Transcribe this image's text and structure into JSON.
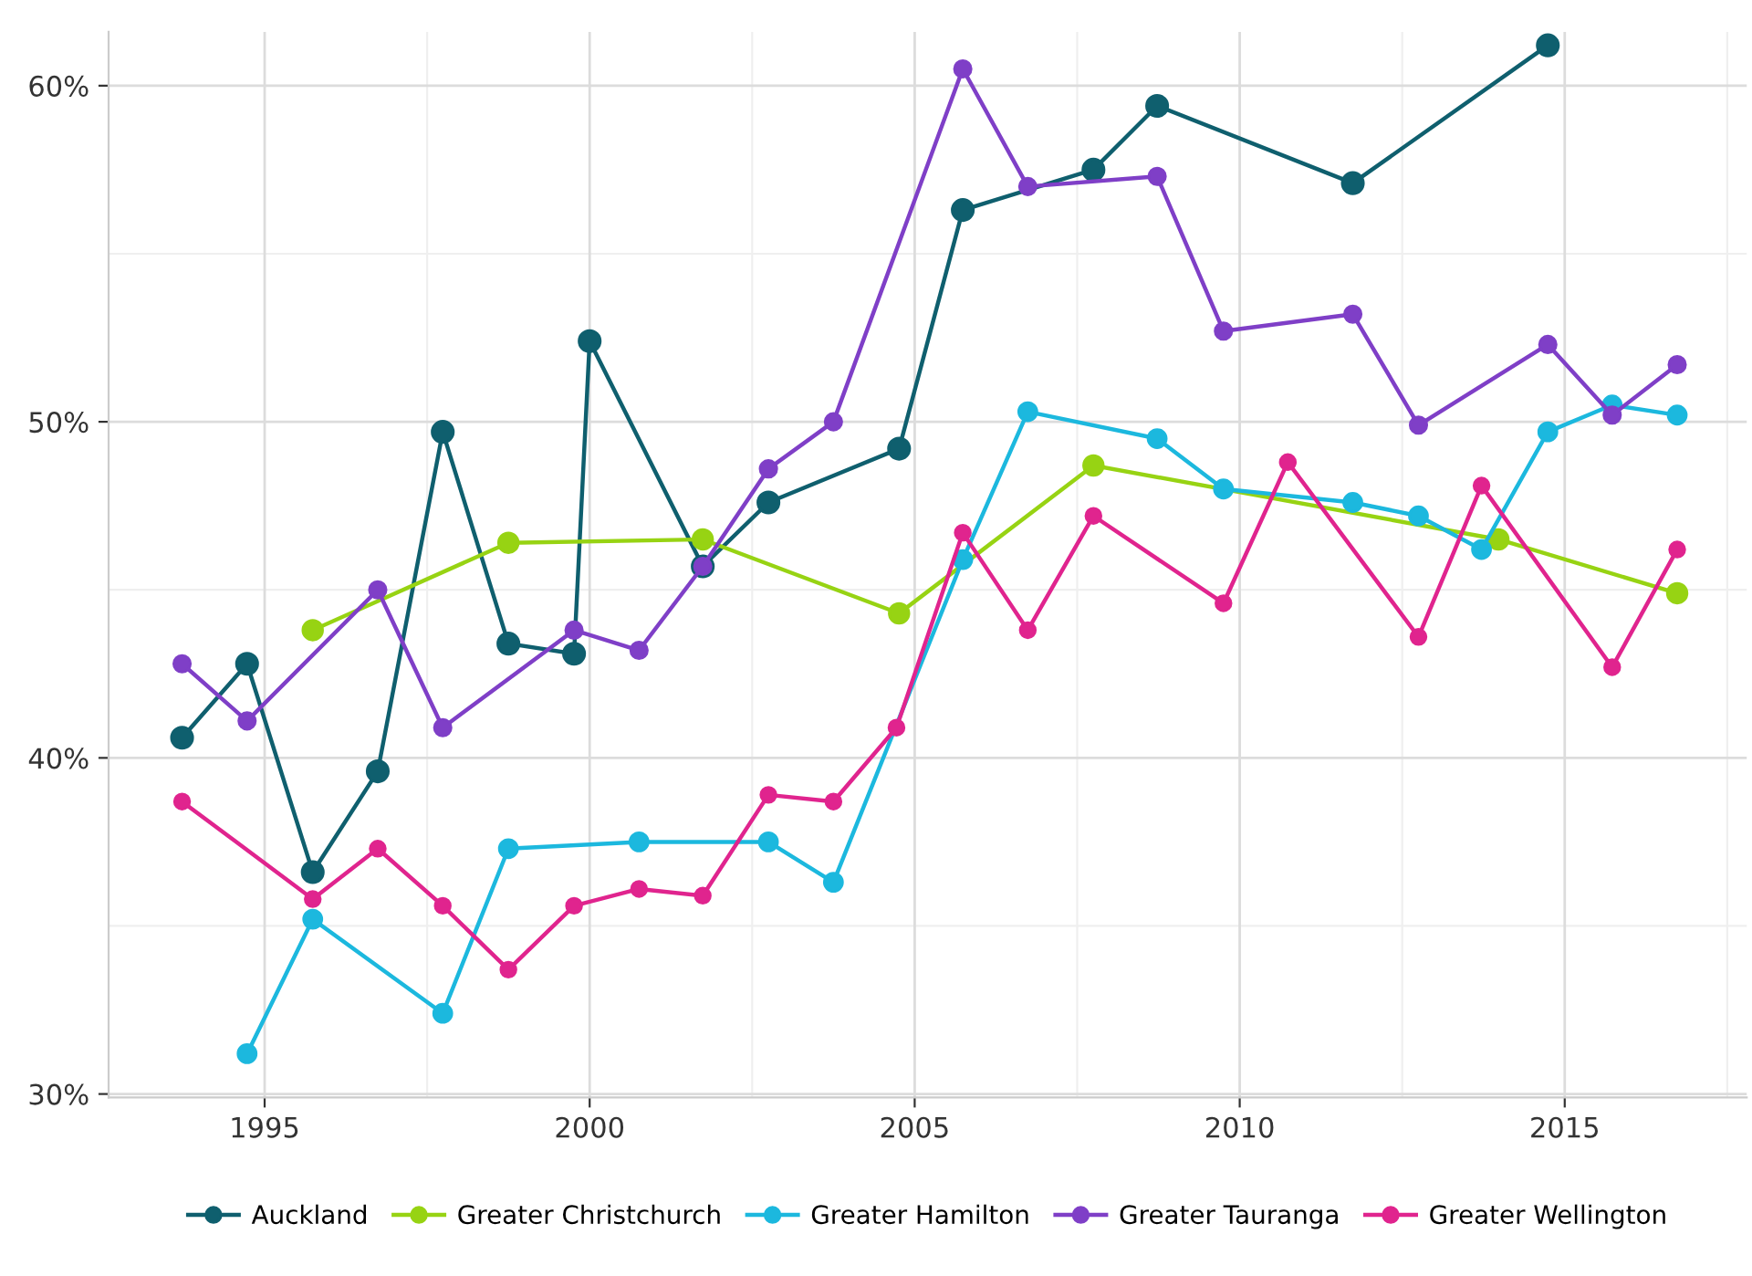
{
  "chart_data": {
    "type": "line",
    "marker": "circle",
    "grid": true,
    "legend": "bottom",
    "xlim": [
      1992.6,
      2017.8
    ],
    "ylim": [
      29.9,
      61.6
    ],
    "xticks": [
      1995,
      2000,
      2005,
      2010,
      2015
    ],
    "yticks": [
      {
        "value": 30,
        "label": "30%"
      },
      {
        "value": 40,
        "label": "40%"
      },
      {
        "value": 50,
        "label": "50%"
      },
      {
        "value": 60,
        "label": "60%"
      }
    ],
    "series": [
      {
        "name": "Auckland",
        "color": "#0f5f6e",
        "x": [
          1993.73,
          1994.73,
          1995.74,
          1996.74,
          1997.74,
          1998.75,
          1999.76,
          2000.0,
          2001.74,
          2002.75,
          2004.76,
          2005.74,
          2007.75,
          2008.73,
          2011.74,
          2014.74
        ],
        "values": [
          40.6,
          42.8,
          36.6,
          39.6,
          49.7,
          43.4,
          43.1,
          52.4,
          45.7,
          47.6,
          49.2,
          56.3,
          57.5,
          59.4,
          57.1,
          61.2
        ]
      },
      {
        "name": "Greater Christchurch",
        "color": "#97d313",
        "x": [
          1995.74,
          1998.75,
          2001.74,
          2004.76,
          2007.75,
          2013.98,
          2016.73
        ],
        "values": [
          43.8,
          46.4,
          46.5,
          44.3,
          48.7,
          46.5,
          44.9
        ]
      },
      {
        "name": "Greater Hamilton",
        "color": "#1cb8de",
        "x": [
          1994.73,
          1995.74,
          1997.74,
          1998.75,
          2000.76,
          2002.75,
          2003.75,
          2005.74,
          2006.74,
          2008.73,
          2009.75,
          2011.74,
          2012.75,
          2013.72,
          2014.74,
          2015.73,
          2016.73
        ],
        "values": [
          31.2,
          35.2,
          32.4,
          37.3,
          37.5,
          37.5,
          36.3,
          45.9,
          50.3,
          49.5,
          48.0,
          47.6,
          47.2,
          46.2,
          49.7,
          50.5,
          50.2
        ]
      },
      {
        "name": "Greater Tauranga",
        "color": "#7f3fc7",
        "x": [
          1993.73,
          1994.73,
          1996.74,
          1997.74,
          1999.76,
          2000.76,
          2001.74,
          2002.75,
          2003.75,
          2005.74,
          2006.74,
          2008.73,
          2009.75,
          2011.74,
          2012.75,
          2014.74,
          2015.73,
          2016.73
        ],
        "values": [
          42.8,
          41.1,
          45.0,
          40.9,
          43.8,
          43.2,
          45.7,
          48.6,
          50.0,
          60.5,
          57.0,
          57.3,
          52.7,
          53.2,
          49.9,
          52.3,
          50.2,
          51.7
        ]
      },
      {
        "name": "Greater Wellington",
        "color": "#e0248e",
        "x": [
          1993.73,
          1995.74,
          1996.74,
          1997.74,
          1998.75,
          1999.76,
          2000.76,
          2001.74,
          2002.75,
          2003.75,
          2004.72,
          2005.74,
          2006.74,
          2007.75,
          2009.75,
          2010.74,
          2012.75,
          2013.72,
          2015.73,
          2016.73
        ],
        "values": [
          38.7,
          35.8,
          37.3,
          35.6,
          33.7,
          35.6,
          36.1,
          35.9,
          38.9,
          38.7,
          40.9,
          46.7,
          43.8,
          47.2,
          44.6,
          48.8,
          43.6,
          48.1,
          42.7,
          46.2
        ]
      }
    ]
  }
}
